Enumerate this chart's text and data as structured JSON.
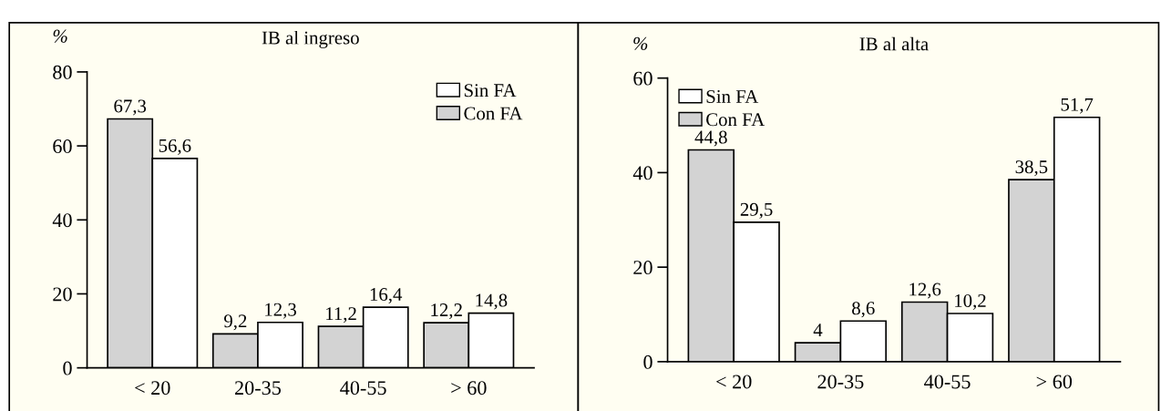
{
  "chart_data": [
    {
      "type": "bar",
      "title": "IB al ingreso",
      "ylabel": "%",
      "categories": [
        "< 20",
        "20-35",
        "40-55",
        "> 60"
      ],
      "series": [
        {
          "name": "Con FA",
          "color": "#d3d3d3",
          "values": [
            67.3,
            9.2,
            11.2,
            12.2
          ],
          "value_labels": [
            "67,3",
            "9,2",
            "11,2",
            "12,2"
          ]
        },
        {
          "name": "Sin FA",
          "color": "#ffffff",
          "values": [
            56.6,
            12.3,
            16.4,
            14.8
          ],
          "value_labels": [
            "56,6",
            "12,3",
            "16,4",
            "14,8"
          ]
        }
      ],
      "ylim": [
        0,
        80
      ],
      "yticks": [
        0,
        20,
        40,
        60,
        80
      ],
      "legend": "top right",
      "grid": false
    },
    {
      "type": "bar",
      "title": "IB al alta",
      "ylabel": "%",
      "categories": [
        "< 20",
        "20-35",
        "40-55",
        "> 60"
      ],
      "series": [
        {
          "name": "Con FA",
          "color": "#d3d3d3",
          "values": [
            44.8,
            4,
            12.6,
            38.5
          ],
          "value_labels": [
            "44,8",
            "4",
            "12,6",
            "38,5"
          ]
        },
        {
          "name": "Sin FA",
          "color": "#ffffff",
          "values": [
            29.5,
            8.6,
            10.2,
            51.7
          ],
          "value_labels": [
            "29,5",
            "8,6",
            "10,2",
            "51,7"
          ]
        }
      ],
      "ylim": [
        0,
        60
      ],
      "yticks": [
        0,
        20,
        40,
        60
      ],
      "legend": "top left",
      "grid": false
    }
  ]
}
